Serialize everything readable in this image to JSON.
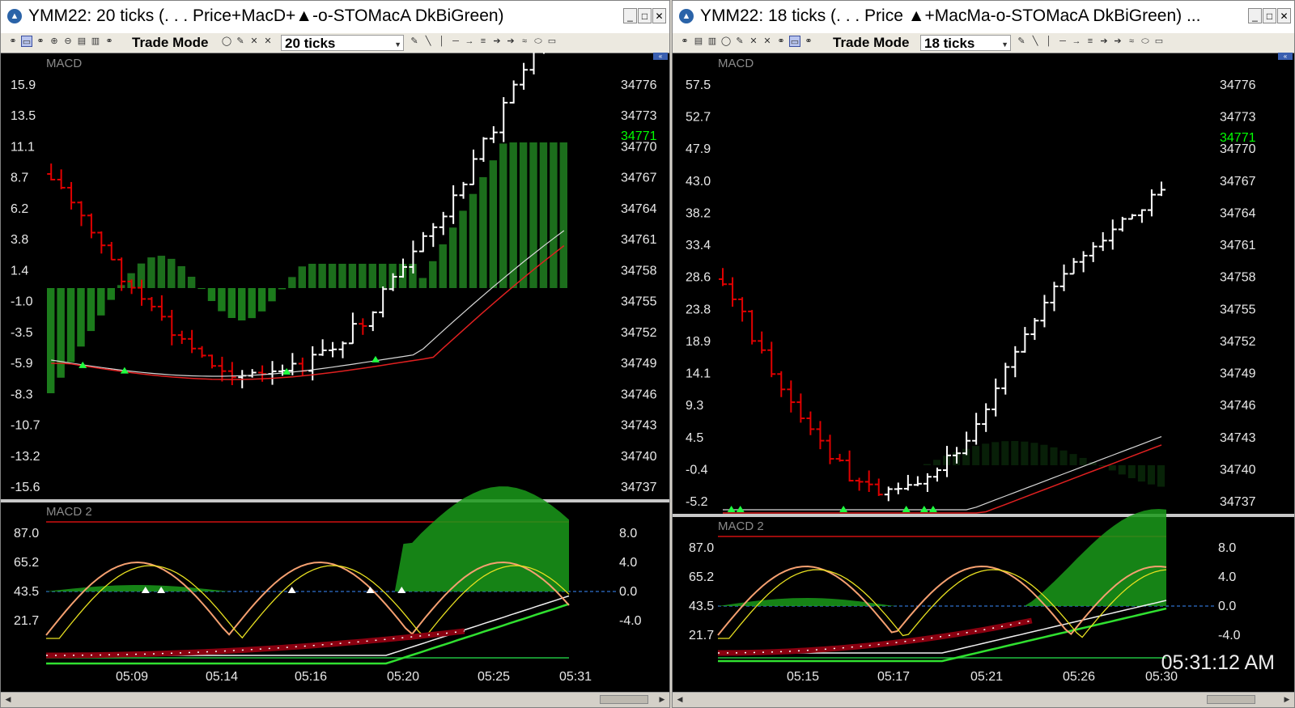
{
  "windows": [
    {
      "title": "YMM22: 20 ticks (. . .   Price+MacD+▲-o-STOMacA DkBiGreen)",
      "trade_mode": "Trade Mode",
      "ticks": "20 ticks",
      "price_label": "MACD",
      "osc_label": "MACD 2",
      "last_price": "34771",
      "left_axis": [
        "15.9",
        "13.5",
        "11.1",
        "8.7",
        "6.2",
        "3.8",
        "1.4",
        "-1.0",
        "-3.5",
        "-5.9",
        "-8.3",
        "-10.7",
        "-13.2",
        "-15.6"
      ],
      "right_axis": [
        "34776",
        "34773",
        "34770",
        "34767",
        "34764",
        "34761",
        "34758",
        "34755",
        "34752",
        "34749",
        "34746",
        "34743",
        "34740",
        "34737"
      ],
      "osc_left_axis": [
        "87.0",
        "65.2",
        "43.5",
        "21.7"
      ],
      "osc_right_axis": [
        "8.0",
        "4.0",
        "0.0",
        "-4.0"
      ],
      "time_labels": [
        "05:09",
        "05:14",
        "05:16",
        "05:20",
        "05:25",
        "05:31"
      ]
    },
    {
      "title": "YMM22: 18 ticks (. . .   Price ▲+MacMa-o-STOMacA DkBiGreen) ...",
      "trade_mode": "Trade Mode",
      "ticks": "18 ticks",
      "price_label": "MACD",
      "osc_label": "MACD 2",
      "last_price": "34771",
      "left_axis": [
        "57.5",
        "52.7",
        "47.9",
        "43.0",
        "38.2",
        "33.4",
        "28.6",
        "23.8",
        "18.9",
        "14.1",
        "9.3",
        "4.5",
        "-0.4",
        "-5.2"
      ],
      "right_axis": [
        "34776",
        "34773",
        "34770",
        "34767",
        "34764",
        "34761",
        "34758",
        "34755",
        "34752",
        "34749",
        "34746",
        "34743",
        "34740",
        "34737"
      ],
      "osc_left_axis": [
        "87.0",
        "65.2",
        "43.5",
        "21.7"
      ],
      "osc_right_axis": [
        "8.0",
        "4.0",
        "0.0",
        "-4.0"
      ],
      "time_labels": [
        "05:15",
        "05:17",
        "05:21",
        "05:26",
        "05:30"
      ]
    }
  ],
  "clock": "05:31:12 AM",
  "colors": {
    "up_bar": "#ffffff",
    "down_bar": "#e00000",
    "hist_pos": "#1f7a1f",
    "hist_neg": "#1f8a1f",
    "macd_line": "#d8d8d8",
    "signal_line": "#e02020",
    "last_price": "#00ff00",
    "stoch_fast": "#f5a070",
    "stoch_slow": "#e8e020",
    "osc_zero": "#3a8cff"
  }
}
